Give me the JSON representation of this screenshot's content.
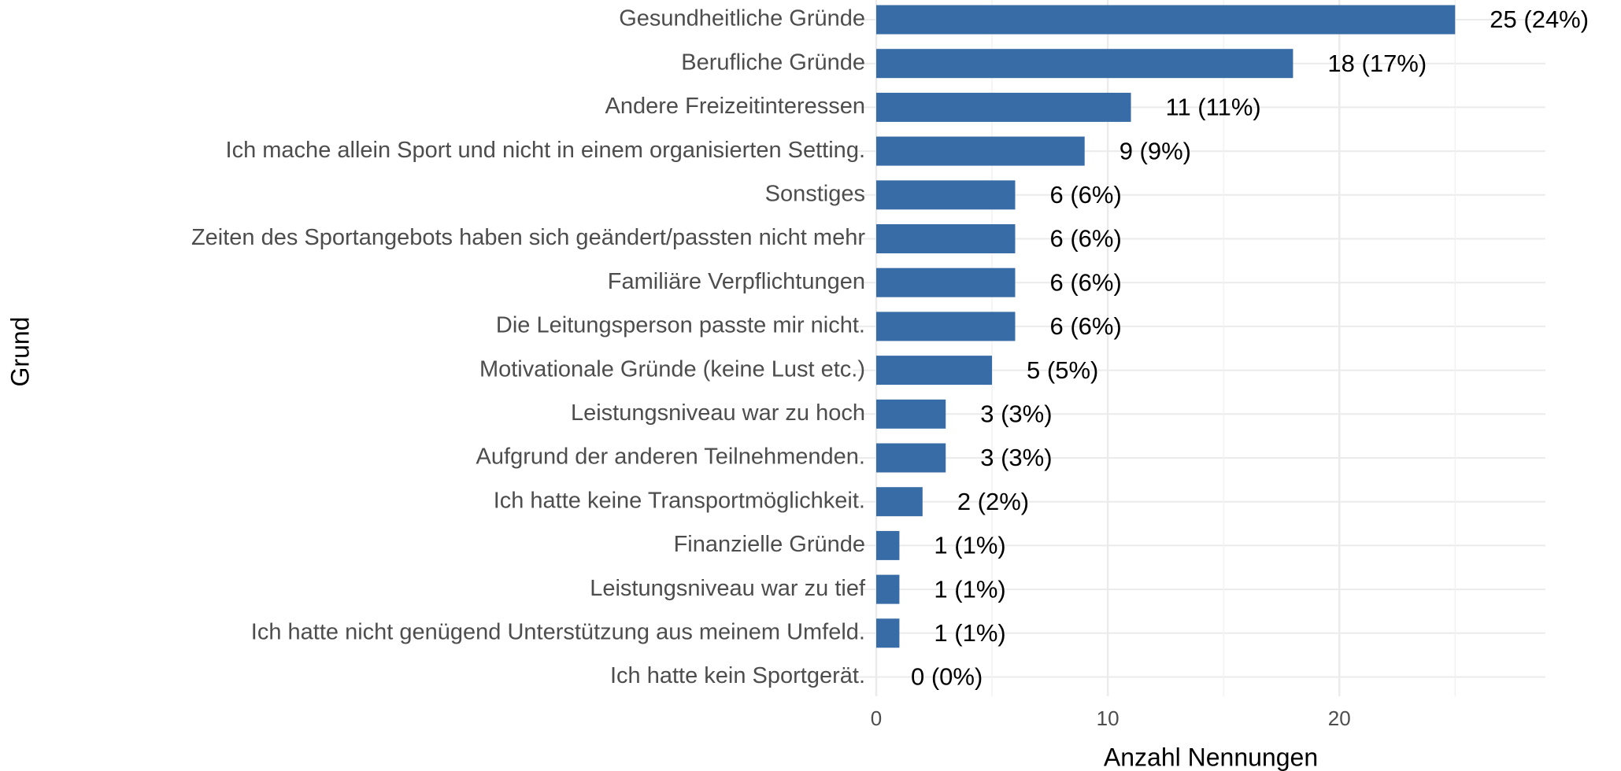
{
  "chart_data": {
    "type": "bar",
    "orientation": "horizontal",
    "categories": [
      "Gesundheitliche Gründe",
      "Berufliche Gründe",
      "Andere Freizeitinteressen",
      "Ich mache allein Sport und nicht in einem organisierten Setting.",
      "Sonstiges",
      "Zeiten des Sportangebots haben sich geändert/passten nicht mehr",
      "Familiäre Verpflichtungen",
      "Die Leitungsperson passte mir nicht.",
      "Motivationale Gründe (keine Lust etc.)",
      "Leistungsniveau war zu hoch",
      "Aufgrund der anderen Teilnehmenden.",
      "Ich hatte keine Transportmöglichkeit.",
      "Finanzielle Gründe",
      "Leistungsniveau war zu tief",
      "Ich hatte nicht genügend Unterstützung aus meinem Umfeld.",
      "Ich hatte kein Sportgerät."
    ],
    "values": [
      25,
      18,
      11,
      9,
      6,
      6,
      6,
      6,
      5,
      3,
      3,
      2,
      1,
      1,
      1,
      0
    ],
    "value_labels": [
      "25 (24%)",
      "18 (17%)",
      "11 (11%)",
      "9 (9%)",
      "6 (6%)",
      "6 (6%)",
      "6 (6%)",
      "6 (6%)",
      "5 (5%)",
      "3 (3%)",
      "3 (3%)",
      "2 (2%)",
      "1 (1%)",
      "1 (1%)",
      "1 (1%)",
      "0 (0%)"
    ],
    "color": "#386ca6",
    "xlabel": "Anzahl Nennungen",
    "ylabel": "Grund",
    "xlim": [
      0,
      28.9
    ],
    "xticks": [
      0,
      10,
      20
    ],
    "minor_xticks": [
      5,
      15,
      25
    ],
    "grid": true
  }
}
